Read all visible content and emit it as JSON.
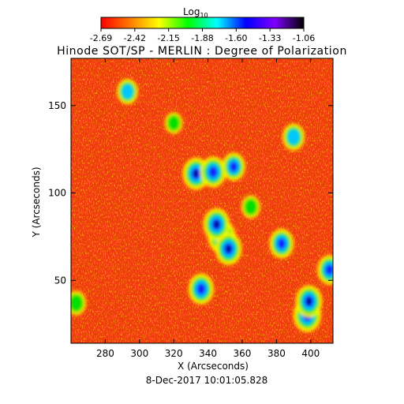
{
  "chart_data": {
    "type": "heatmap",
    "title": "Hinode SOT/SP - MERLIN : Degree of Polarization",
    "colorbar": {
      "label_base": "Log",
      "label_sub": "10",
      "ticks": [
        "-2.69",
        "-2.42",
        "-2.15",
        "-1.88",
        "-1.60",
        "-1.33",
        "-1.06"
      ],
      "range": [
        -2.69,
        -1.06
      ],
      "colormap": [
        "#ff0000",
        "#ff7a00",
        "#ffff00",
        "#00ff00",
        "#00ffff",
        "#0000ff",
        "#8000ff",
        "#000000"
      ]
    },
    "xlabel": "X (Arcseconds)",
    "ylabel": "Y (Arcseconds)",
    "xlim": [
      260,
      413
    ],
    "ylim": [
      14,
      177
    ],
    "xticks": [
      280,
      300,
      320,
      340,
      360,
      380,
      400
    ],
    "yticks": [
      50,
      100,
      150
    ],
    "date_label": "8-Dec-2017 10:01:05.828",
    "features": [
      {
        "x": 348,
        "y": 75,
        "level": 0.85
      },
      {
        "x": 345,
        "y": 82,
        "level": 0.8
      },
      {
        "x": 352,
        "y": 68,
        "level": 0.8
      },
      {
        "x": 333,
        "y": 111,
        "level": 0.8
      },
      {
        "x": 343,
        "y": 112,
        "level": 0.75
      },
      {
        "x": 355,
        "y": 115,
        "level": 0.65
      },
      {
        "x": 398,
        "y": 30,
        "level": 0.85
      },
      {
        "x": 399,
        "y": 38,
        "level": 0.8
      },
      {
        "x": 336,
        "y": 45,
        "level": 0.75
      },
      {
        "x": 383,
        "y": 71,
        "level": 0.7
      },
      {
        "x": 411,
        "y": 56,
        "level": 0.7
      },
      {
        "x": 390,
        "y": 132,
        "level": 0.6
      },
      {
        "x": 293,
        "y": 158,
        "level": 0.55
      },
      {
        "x": 263,
        "y": 37,
        "level": 0.5
      },
      {
        "x": 365,
        "y": 92,
        "level": 0.45
      },
      {
        "x": 320,
        "y": 140,
        "level": 0.4
      }
    ]
  }
}
